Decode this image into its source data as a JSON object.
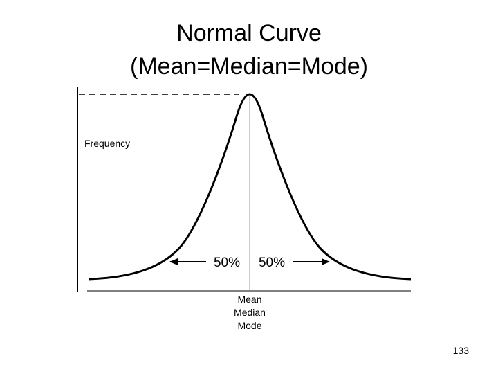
{
  "slide": {
    "title_line1": "Normal Curve",
    "title_line2": "(Mean=Median=Mode)",
    "page_number": "133"
  },
  "figure": {
    "y_axis_label": "Frequency",
    "left_share_label": "50%",
    "right_share_label": "50%",
    "center_labels": [
      "Mean",
      "Median",
      "Mode"
    ],
    "line_color": "#000000",
    "guide_color": "#999999"
  }
}
